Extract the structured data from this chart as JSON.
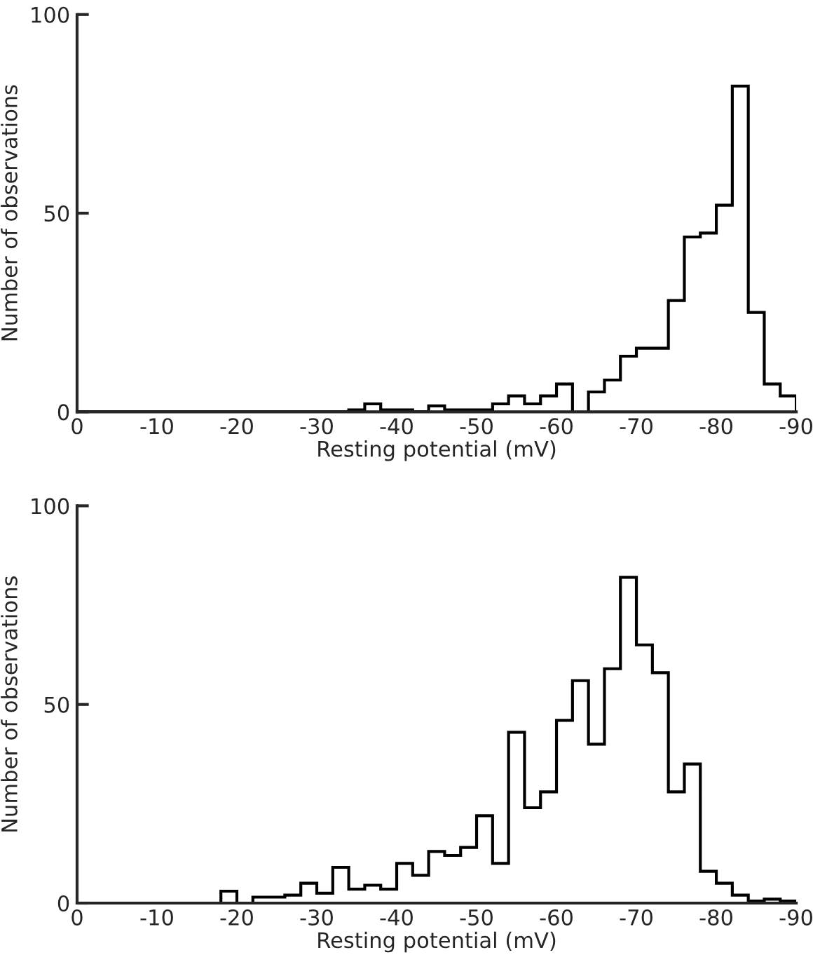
{
  "chart_data": [
    {
      "type": "histogram",
      "xlabel": "Resting potential (mV)",
      "ylabel": "Number of observations",
      "bins": [
        0,
        -2,
        -4,
        -6,
        -8,
        -10,
        -12,
        -14,
        -16,
        -18,
        -20,
        -22,
        -24,
        -26,
        -28,
        -30,
        -32,
        -34,
        -36,
        -38,
        -40,
        -42,
        -44,
        -46,
        -48,
        -50,
        -52,
        -54,
        -56,
        -58,
        -60,
        -62,
        -64,
        -66,
        -68,
        -70,
        -72,
        -74,
        -76,
        -78,
        -80,
        -82,
        -84,
        -86,
        -88,
        -90
      ],
      "values": [
        0,
        0,
        0,
        0,
        0,
        0,
        0,
        0,
        0,
        0,
        0,
        0,
        0,
        0,
        0,
        0,
        0,
        0.5,
        2,
        0.5,
        0.5,
        0,
        1.5,
        0.5,
        0.5,
        0.5,
        2,
        4,
        2,
        4,
        7,
        null,
        5,
        8,
        14,
        16,
        16,
        28,
        44,
        45,
        52,
        82,
        25,
        7,
        4
      ],
      "color": "#000000",
      "xlim": [
        0,
        -90
      ],
      "xticks": [
        0,
        -10,
        -20,
        -30,
        -40,
        -50,
        -60,
        -70,
        -80,
        -90
      ],
      "ylim": [
        0,
        100
      ],
      "yticks": [
        0,
        50,
        100
      ],
      "grid": false
    },
    {
      "type": "histogram",
      "xlabel": "Resting potential (mV)",
      "ylabel": "Number of observations",
      "bins": [
        0,
        -2,
        -4,
        -6,
        -8,
        -10,
        -12,
        -14,
        -16,
        -18,
        -20,
        -22,
        -24,
        -26,
        -28,
        -30,
        -32,
        -34,
        -36,
        -38,
        -40,
        -42,
        -44,
        -46,
        -48,
        -50,
        -52,
        -54,
        -56,
        -58,
        -60,
        -62,
        -64,
        -66,
        -68,
        -70,
        -72,
        -74,
        -76,
        -78,
        -80,
        -82,
        -84,
        -86,
        -88,
        -90
      ],
      "values": [
        0,
        0,
        0,
        0,
        0,
        0,
        0,
        0,
        0,
        3,
        0,
        1.5,
        1.5,
        2,
        5,
        2.5,
        9,
        3.5,
        4.5,
        3.5,
        10,
        7,
        13,
        12,
        14,
        22,
        10,
        43,
        24,
        28,
        46,
        56,
        40,
        59,
        82,
        65,
        58,
        28,
        35,
        8,
        5,
        2,
        0.5,
        1,
        0.5
      ],
      "color": "#000000",
      "xlim": [
        0,
        -90
      ],
      "xticks": [
        0,
        -10,
        -20,
        -30,
        -40,
        -50,
        -60,
        -70,
        -80,
        -90
      ],
      "ylim": [
        0,
        100
      ],
      "yticks": [
        0,
        50,
        100
      ],
      "grid": false
    }
  ]
}
